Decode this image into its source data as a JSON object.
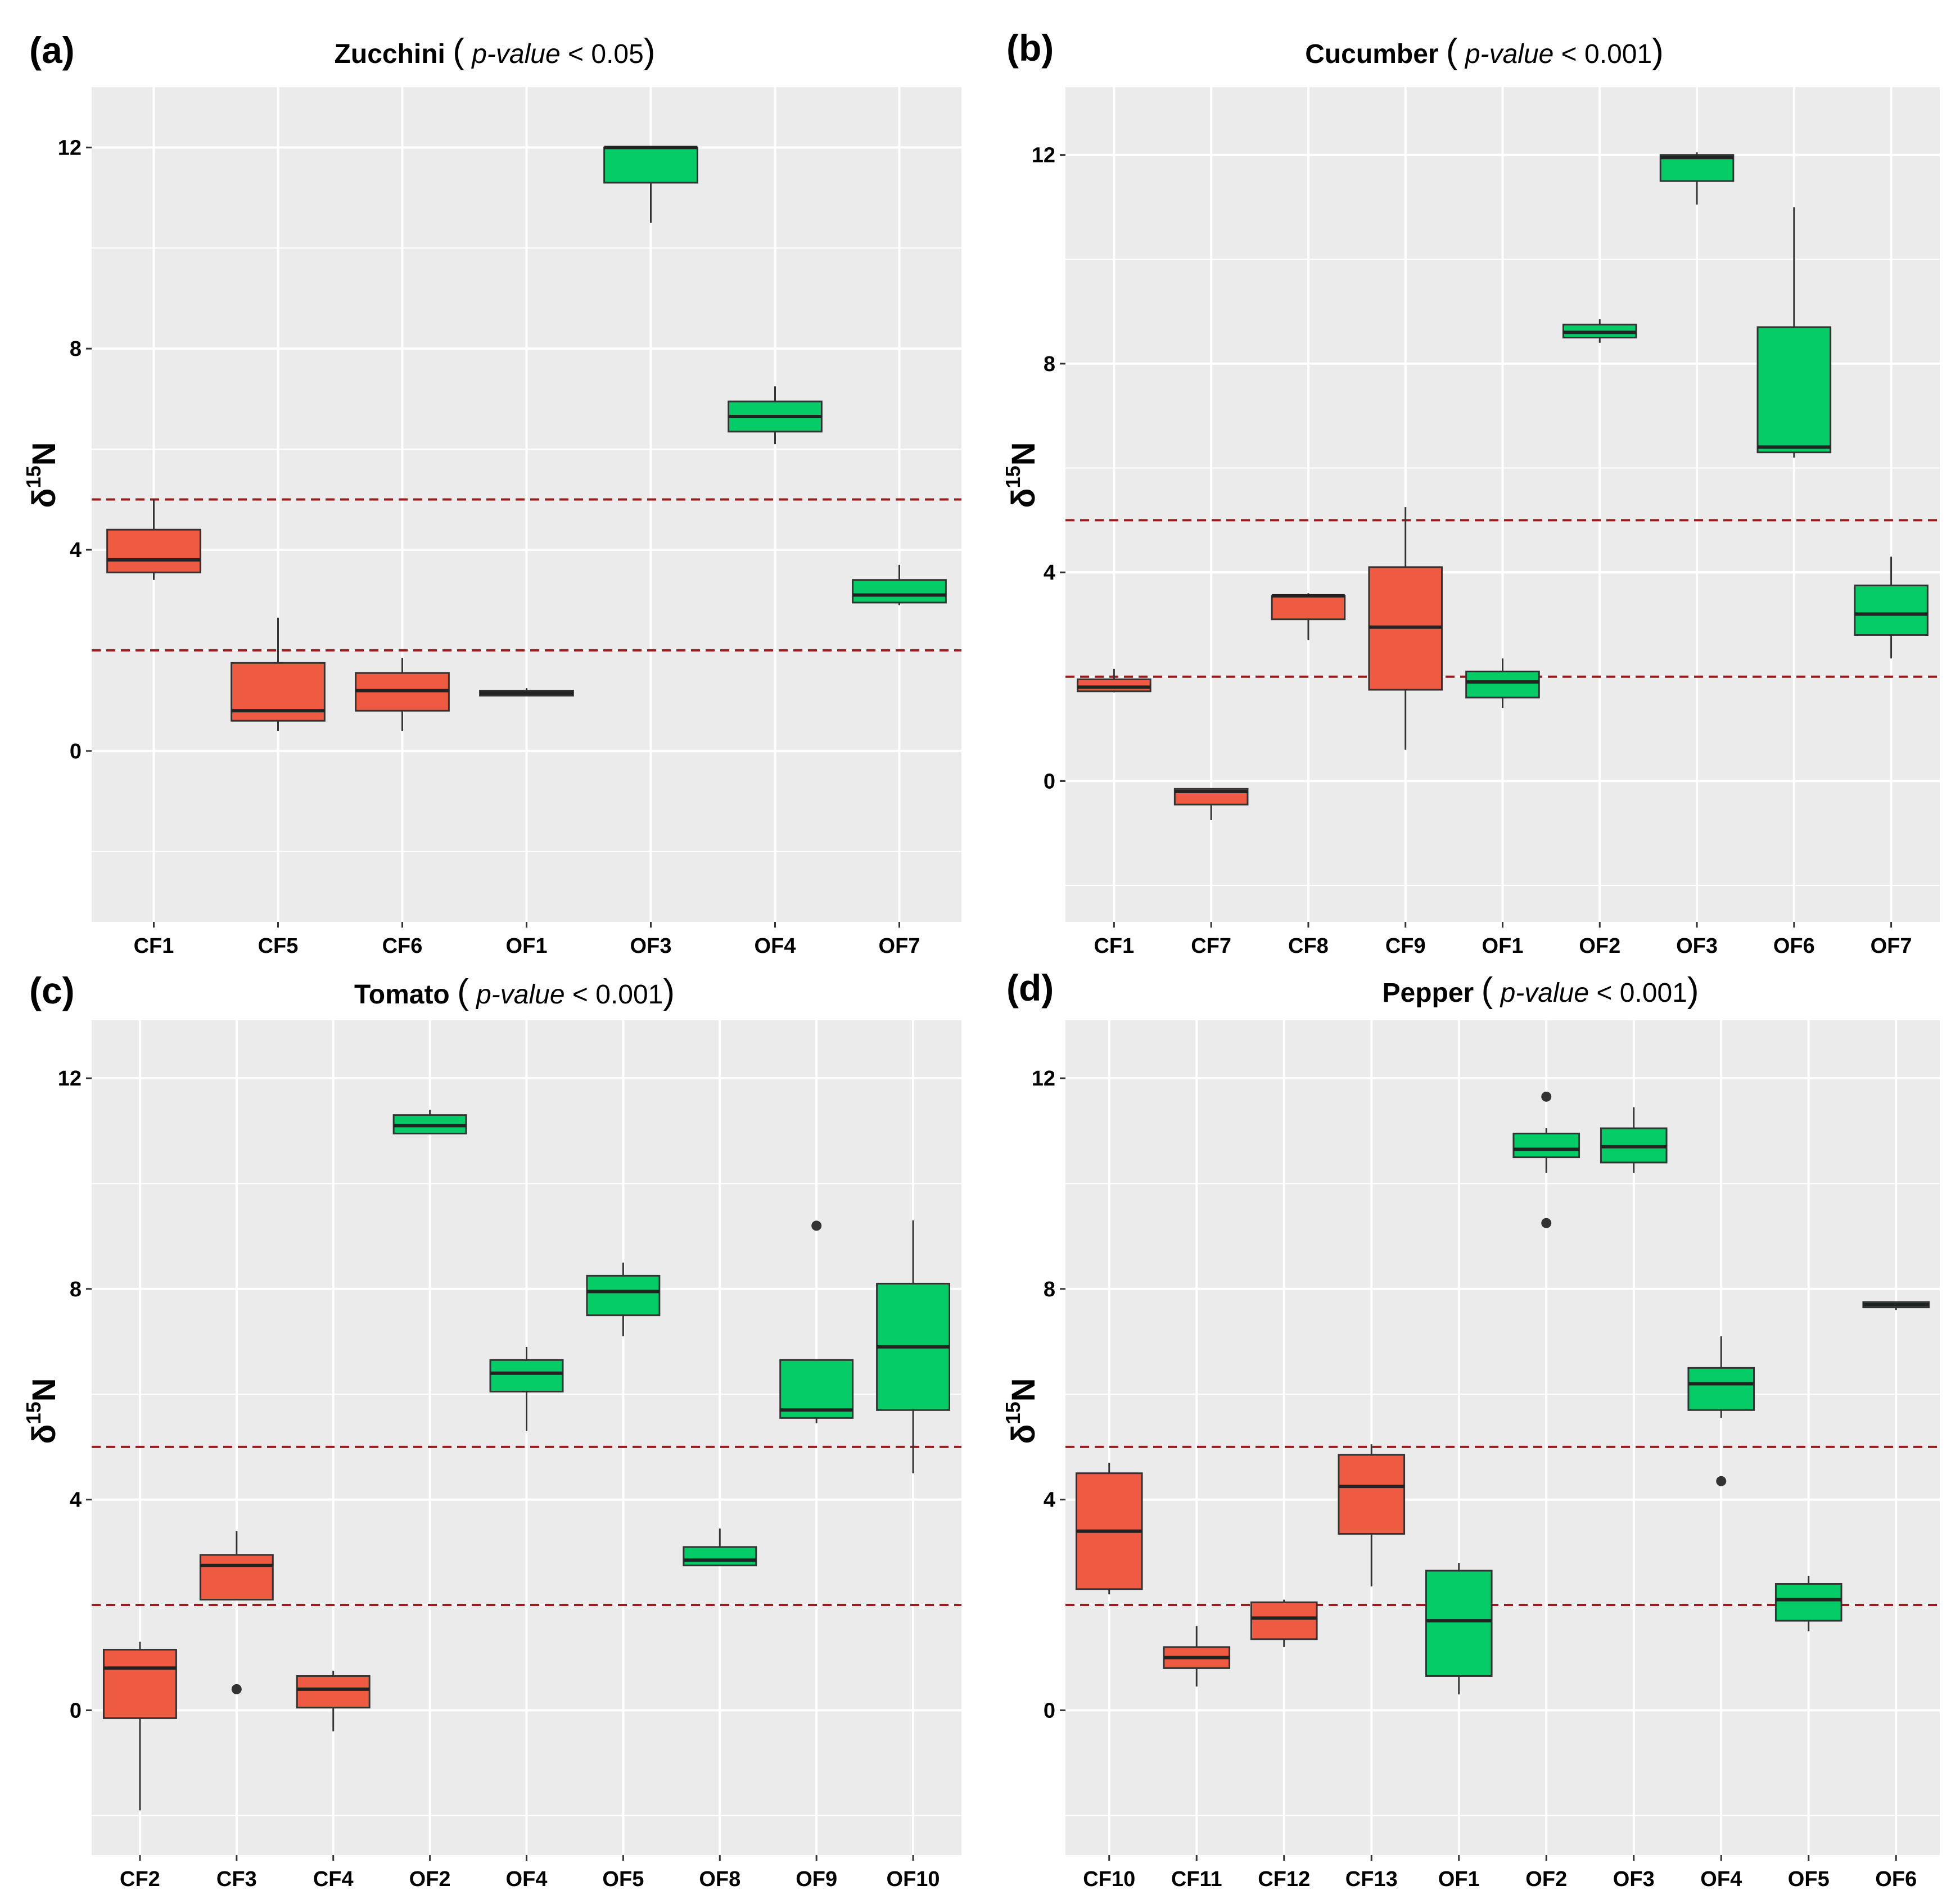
{
  "colors": {
    "conventional": "#EF5B42",
    "organic": "#05CC66",
    "panel_bg": "#EBEBEB",
    "reference_line": "#9B1C1C"
  },
  "chart_data": [
    {
      "panel": "(a)",
      "type": "box",
      "title_bold": "Zucchini",
      "title_paren_open": "(",
      "title_italic": "p-value",
      "title_rest": " < 0.05",
      "title_paren_close": ")",
      "ylabel_symbol": "δ",
      "ylabel_sup": "15",
      "ylabel_element": "N",
      "ylim": [
        -3.4,
        13.2
      ],
      "yticks": [
        0,
        4,
        8,
        12
      ],
      "ytick_labels": [
        "0",
        "4",
        "8",
        "12"
      ],
      "reference_lines": [
        2,
        5
      ],
      "categories": [
        "CF1",
        "CF5",
        "CF6",
        "OF1",
        "OF3",
        "OF4",
        "OF7"
      ],
      "groups": [
        "conventional",
        "conventional",
        "conventional",
        "organic",
        "organic",
        "organic",
        "organic"
      ],
      "boxes": [
        {
          "min": 3.4,
          "q1": 3.55,
          "median": 3.8,
          "q3": 4.4,
          "max": 5.0,
          "outliers": []
        },
        {
          "min": 0.4,
          "q1": 0.6,
          "median": 0.8,
          "q3": 1.75,
          "max": 2.65,
          "outliers": []
        },
        {
          "min": 0.4,
          "q1": 0.8,
          "median": 1.2,
          "q3": 1.55,
          "max": 1.85,
          "outliers": []
        },
        {
          "min": 1.1,
          "q1": 1.1,
          "median": 1.15,
          "q3": 1.2,
          "max": 1.25,
          "outliers": []
        },
        {
          "min": 10.5,
          "q1": 11.3,
          "median": 12.0,
          "q3": 12.0,
          "max": 12.0,
          "outliers": []
        },
        {
          "min": 6.1,
          "q1": 6.35,
          "median": 6.65,
          "q3": 6.95,
          "max": 7.25,
          "outliers": []
        },
        {
          "min": 2.9,
          "q1": 2.95,
          "median": 3.1,
          "q3": 3.4,
          "max": 3.7,
          "outliers": []
        }
      ]
    },
    {
      "panel": "(b)",
      "type": "box",
      "title_bold": "Cucumber",
      "title_paren_open": "(",
      "title_italic": "p-value",
      "title_rest": " < 0.001",
      "title_paren_close": ")",
      "ylabel_symbol": "δ",
      "ylabel_sup": "15",
      "ylabel_element": "N",
      "ylim": [
        -2.7,
        13.3
      ],
      "yticks": [
        0,
        4,
        8,
        12
      ],
      "ytick_labels": [
        "0",
        "4",
        "8",
        "12"
      ],
      "reference_lines": [
        2,
        5
      ],
      "categories": [
        "CF1",
        "CF7",
        "CF8",
        "CF9",
        "OF1",
        "OF2",
        "OF3",
        "OF6",
        "OF7"
      ],
      "groups": [
        "conventional",
        "conventional",
        "conventional",
        "conventional",
        "organic",
        "organic",
        "organic",
        "organic",
        "organic"
      ],
      "boxes": [
        {
          "min": 1.7,
          "q1": 1.72,
          "median": 1.8,
          "q3": 1.95,
          "max": 2.15,
          "outliers": []
        },
        {
          "min": -0.75,
          "q1": -0.45,
          "median": -0.2,
          "q3": -0.15,
          "max": -0.15,
          "outliers": []
        },
        {
          "min": 2.7,
          "q1": 3.1,
          "median": 3.55,
          "q3": 3.55,
          "max": 3.6,
          "outliers": []
        },
        {
          "min": 0.6,
          "q1": 1.75,
          "median": 2.95,
          "q3": 4.1,
          "max": 5.25,
          "outliers": []
        },
        {
          "min": 1.4,
          "q1": 1.6,
          "median": 1.9,
          "q3": 2.1,
          "max": 2.35,
          "outliers": []
        },
        {
          "min": 8.4,
          "q1": 8.5,
          "median": 8.6,
          "q3": 8.75,
          "max": 8.85,
          "outliers": []
        },
        {
          "min": 11.05,
          "q1": 11.5,
          "median": 11.95,
          "q3": 12.0,
          "max": 12.05,
          "outliers": []
        },
        {
          "min": 6.2,
          "q1": 6.3,
          "median": 6.4,
          "q3": 8.7,
          "max": 11.0,
          "outliers": []
        },
        {
          "min": 2.35,
          "q1": 2.8,
          "median": 3.2,
          "q3": 3.75,
          "max": 4.3,
          "outliers": []
        }
      ]
    },
    {
      "panel": "(c)",
      "type": "box",
      "title_bold": "Tomato",
      "title_paren_open": "(",
      "title_italic": "p-value",
      "title_rest": " < 0.001",
      "title_paren_close": ")",
      "ylabel_symbol": "δ",
      "ylabel_sup": "15",
      "ylabel_element": "N",
      "ylim": [
        -2.75,
        13.1
      ],
      "yticks": [
        0,
        4,
        8,
        12
      ],
      "ytick_labels": [
        "0",
        "4",
        "8",
        "12"
      ],
      "reference_lines": [
        2,
        5
      ],
      "categories": [
        "CF2",
        "CF3",
        "CF4",
        "OF2",
        "OF4",
        "OF5",
        "OF8",
        "OF9",
        "OF10"
      ],
      "groups": [
        "conventional",
        "conventional",
        "conventional",
        "organic",
        "organic",
        "organic",
        "organic",
        "organic",
        "organic"
      ],
      "boxes": [
        {
          "min": -1.9,
          "q1": -0.15,
          "median": 0.8,
          "q3": 1.15,
          "max": 1.3,
          "outliers": []
        },
        {
          "min": 2.1,
          "q1": 2.1,
          "median": 2.75,
          "q3": 2.95,
          "max": 3.4,
          "outliers": [
            0.4
          ]
        },
        {
          "min": -0.4,
          "q1": 0.05,
          "median": 0.4,
          "q3": 0.65,
          "max": 0.75,
          "outliers": []
        },
        {
          "min": 10.95,
          "q1": 10.95,
          "median": 11.1,
          "q3": 11.3,
          "max": 11.4,
          "outliers": []
        },
        {
          "min": 5.3,
          "q1": 6.05,
          "median": 6.4,
          "q3": 6.65,
          "max": 6.9,
          "outliers": []
        },
        {
          "min": 7.1,
          "q1": 7.5,
          "median": 7.95,
          "q3": 8.25,
          "max": 8.5,
          "outliers": []
        },
        {
          "min": 2.75,
          "q1": 2.75,
          "median": 2.85,
          "q3": 3.1,
          "max": 3.45,
          "outliers": []
        },
        {
          "min": 5.45,
          "q1": 5.55,
          "median": 5.7,
          "q3": 6.65,
          "max": 6.65,
          "outliers": [
            9.2
          ]
        },
        {
          "min": 4.5,
          "q1": 5.7,
          "median": 6.9,
          "q3": 8.1,
          "max": 9.3,
          "outliers": []
        }
      ]
    },
    {
      "panel": "(d)",
      "type": "box",
      "title_bold": "Pepper",
      "title_paren_open": "(",
      "title_italic": "p-value",
      "title_rest": " < 0.001",
      "title_paren_close": ")",
      "ylabel_symbol": "δ",
      "ylabel_sup": "15",
      "ylabel_element": "N",
      "ylim": [
        -2.75,
        13.1
      ],
      "yticks": [
        0,
        4,
        8,
        12
      ],
      "ytick_labels": [
        "0",
        "4",
        "8",
        "12"
      ],
      "reference_lines": [
        2,
        5
      ],
      "categories": [
        "CF10",
        "CF11",
        "CF12",
        "CF13",
        "OF1",
        "OF2",
        "OF3",
        "OF4",
        "OF5",
        "OF6"
      ],
      "groups": [
        "conventional",
        "conventional",
        "conventional",
        "conventional",
        "organic",
        "organic",
        "organic",
        "organic",
        "organic",
        "organic"
      ],
      "boxes": [
        {
          "min": 2.2,
          "q1": 2.3,
          "median": 3.4,
          "q3": 4.5,
          "max": 4.7,
          "outliers": []
        },
        {
          "min": 0.45,
          "q1": 0.8,
          "median": 1.0,
          "q3": 1.2,
          "max": 1.6,
          "outliers": []
        },
        {
          "min": 1.2,
          "q1": 1.35,
          "median": 1.75,
          "q3": 2.05,
          "max": 2.1,
          "outliers": []
        },
        {
          "min": 2.35,
          "q1": 3.35,
          "median": 4.25,
          "q3": 4.85,
          "max": 5.05,
          "outliers": []
        },
        {
          "min": 0.3,
          "q1": 0.65,
          "median": 1.7,
          "q3": 2.65,
          "max": 2.8,
          "outliers": []
        },
        {
          "min": 10.2,
          "q1": 10.5,
          "median": 10.65,
          "q3": 10.95,
          "max": 11.05,
          "outliers": [
            9.25,
            11.65
          ]
        },
        {
          "min": 10.2,
          "q1": 10.4,
          "median": 10.7,
          "q3": 11.05,
          "max": 11.45,
          "outliers": []
        },
        {
          "min": 5.55,
          "q1": 5.7,
          "median": 6.2,
          "q3": 6.5,
          "max": 7.1,
          "outliers": [
            4.35
          ]
        },
        {
          "min": 1.5,
          "q1": 1.7,
          "median": 2.1,
          "q3": 2.4,
          "max": 2.55,
          "outliers": []
        },
        {
          "min": 7.6,
          "q1": 7.65,
          "median": 7.7,
          "q3": 7.75,
          "max": 7.75,
          "outliers": []
        }
      ]
    }
  ]
}
